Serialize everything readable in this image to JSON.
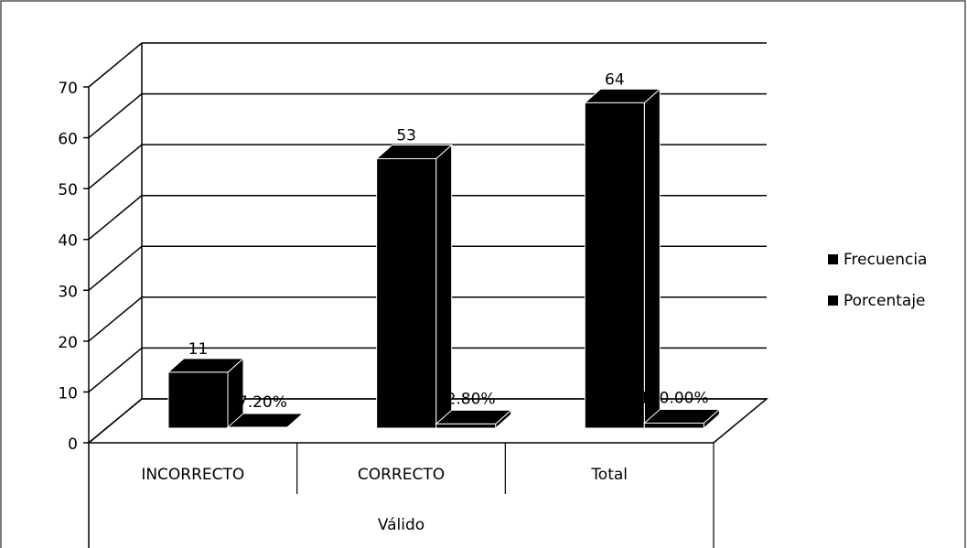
{
  "chart_data": {
    "type": "bar3d",
    "categories": [
      "INCORRECTO",
      "CORRECTO",
      "Total"
    ],
    "group_label": "Válido",
    "series": [
      {
        "name": "Frecuencia",
        "color": "#000000",
        "values": [
          11,
          53,
          64
        ]
      },
      {
        "name": "Porcentaje",
        "color": "#000000",
        "values": [
          0.172,
          0.828,
          1
        ],
        "value_labels": [
          "17.20%",
          "82.80%",
          "100.00%"
        ]
      }
    ],
    "ylim": [
      0,
      70
    ],
    "yticks": [
      0,
      10,
      20,
      30,
      40,
      50,
      60,
      70
    ],
    "grid": true,
    "legend": "right"
  }
}
